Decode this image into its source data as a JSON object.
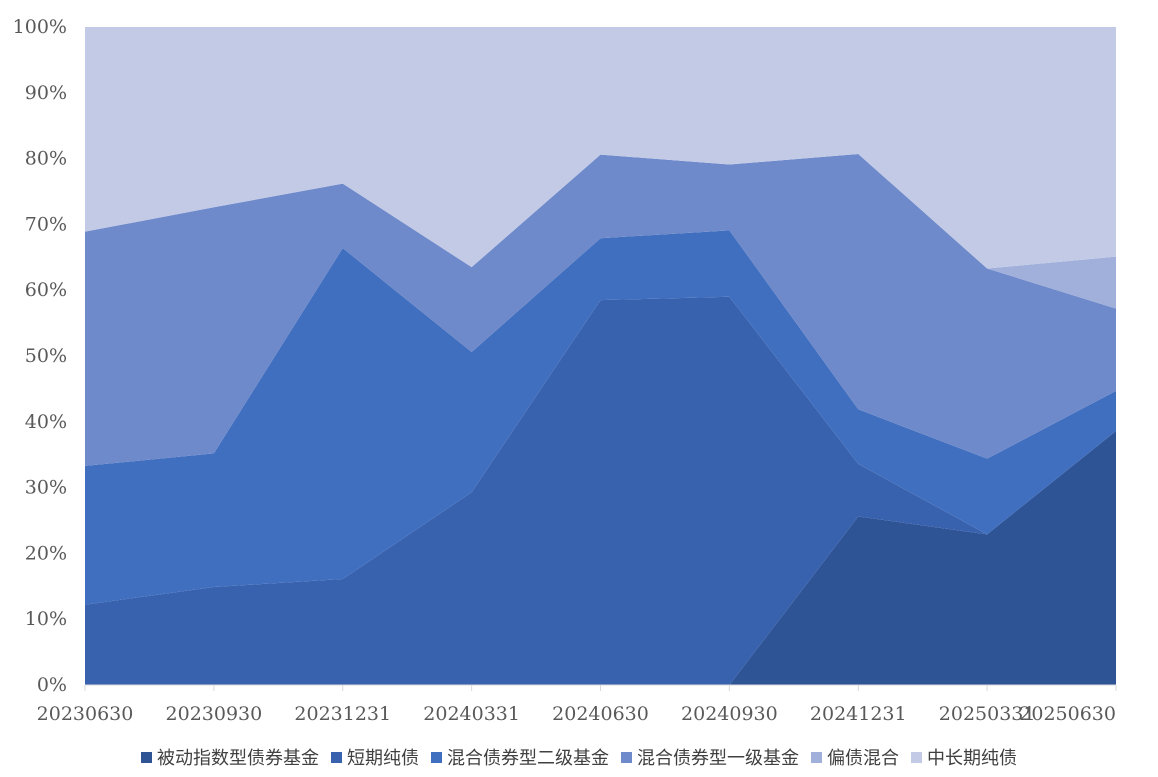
{
  "chart_data": {
    "type": "area",
    "stacked": true,
    "x": [
      "20230630",
      "20230930",
      "20231231",
      "20240331",
      "20240630",
      "20240930",
      "20241231",
      "20250331",
      "20250630"
    ],
    "ylim": [
      0,
      100
    ],
    "yticks": [
      "0%",
      "10%",
      "20%",
      "30%",
      "40%",
      "50%",
      "60%",
      "70%",
      "80%",
      "90%",
      "100%"
    ],
    "grid": false,
    "legend_position": "bottom",
    "series": [
      {
        "name": "被动指数型债券基金",
        "color": "#2e5495",
        "values": [
          0,
          0,
          0,
          0,
          0,
          0,
          25.6,
          22.9,
          38.6
        ]
      },
      {
        "name": "短期纯债",
        "color": "#3862ae",
        "values": [
          12.2,
          14.9,
          16.1,
          29.3,
          58.5,
          59.0,
          8.0,
          0,
          0
        ]
      },
      {
        "name": "混合债券型二级基金",
        "color": "#416fbf",
        "values": [
          21.1,
          20.3,
          50.3,
          21.3,
          9.4,
          10.1,
          8.3,
          11.5,
          6.1
        ]
      },
      {
        "name": "混合债券型一级基金",
        "color": "#6f8acb",
        "values": [
          35.6,
          37.4,
          9.8,
          12.9,
          12.7,
          10.0,
          38.8,
          28.9,
          12.5
        ]
      },
      {
        "name": "偏债混合",
        "color": "#a0b0da",
        "values": [
          0,
          0,
          0,
          0,
          0,
          0,
          0,
          0,
          7.9
        ]
      },
      {
        "name": "中长期纯债",
        "color": "#c2cae6",
        "values": [
          31.1,
          27.4,
          23.8,
          36.5,
          19.4,
          20.9,
          19.3,
          36.7,
          34.9
        ]
      }
    ]
  }
}
